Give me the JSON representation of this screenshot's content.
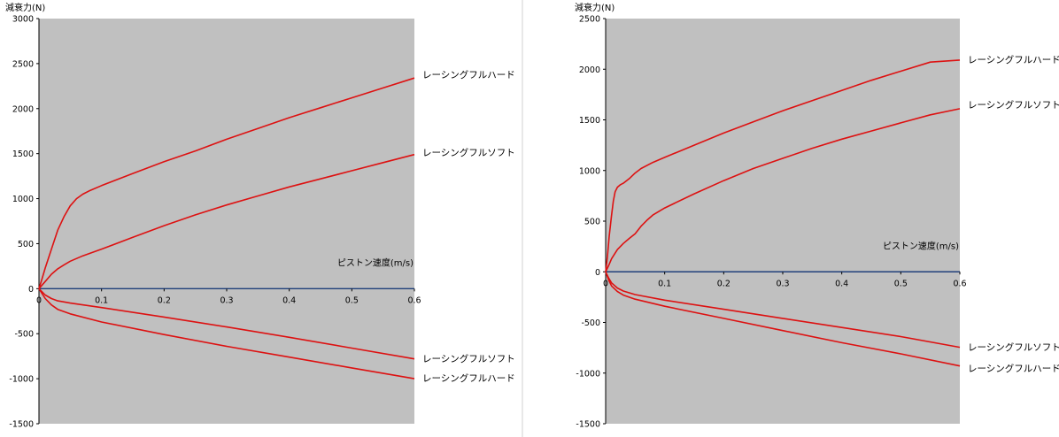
{
  "chart_data": [
    {
      "type": "line",
      "ylabel": "減衰力(N)",
      "xlabel": "ピストン速度(m/s)",
      "xlim": [
        0,
        0.6
      ],
      "ylim": [
        -1500,
        3000
      ],
      "yticks": [
        3000,
        2500,
        2000,
        1500,
        1000,
        500,
        0,
        -500,
        -1000,
        -1500
      ],
      "xticks": [
        "0",
        "0.1",
        "0.2",
        "0.3",
        "0.4",
        "0.5",
        "0.6"
      ],
      "grid": false,
      "series": [
        {
          "name": "レーシングフルハード",
          "points": [
            [
              0,
              0
            ],
            [
              0.005,
              110
            ],
            [
              0.01,
              230
            ],
            [
              0.02,
              440
            ],
            [
              0.03,
              650
            ],
            [
              0.04,
              800
            ],
            [
              0.05,
              920
            ],
            [
              0.06,
              1000
            ],
            [
              0.07,
              1050
            ],
            [
              0.08,
              1085
            ],
            [
              0.1,
              1145
            ],
            [
              0.15,
              1280
            ],
            [
              0.2,
              1410
            ],
            [
              0.25,
              1530
            ],
            [
              0.3,
              1660
            ],
            [
              0.35,
              1780
            ],
            [
              0.4,
              1900
            ],
            [
              0.45,
              2010
            ],
            [
              0.5,
              2120
            ],
            [
              0.55,
              2230
            ],
            [
              0.6,
              2340
            ]
          ]
        },
        {
          "name": "レーシングフルソフト",
          "points": [
            [
              0,
              0
            ],
            [
              0.01,
              80
            ],
            [
              0.02,
              160
            ],
            [
              0.03,
              220
            ],
            [
              0.04,
              265
            ],
            [
              0.05,
              305
            ],
            [
              0.07,
              365
            ],
            [
              0.1,
              440
            ],
            [
              0.15,
              570
            ],
            [
              0.2,
              700
            ],
            [
              0.25,
              820
            ],
            [
              0.3,
              930
            ],
            [
              0.35,
              1030
            ],
            [
              0.4,
              1130
            ],
            [
              0.45,
              1220
            ],
            [
              0.5,
              1310
            ],
            [
              0.55,
              1400
            ],
            [
              0.6,
              1490
            ]
          ]
        },
        {
          "name": "レーシングフルソフト",
          "points": [
            [
              0,
              0
            ],
            [
              0.01,
              -70
            ],
            [
              0.02,
              -110
            ],
            [
              0.03,
              -135
            ],
            [
              0.05,
              -160
            ],
            [
              0.1,
              -210
            ],
            [
              0.2,
              -315
            ],
            [
              0.3,
              -425
            ],
            [
              0.4,
              -540
            ],
            [
              0.5,
              -660
            ],
            [
              0.6,
              -780
            ]
          ]
        },
        {
          "name": "レーシングフルハード",
          "points": [
            [
              0,
              0
            ],
            [
              0.01,
              -110
            ],
            [
              0.02,
              -180
            ],
            [
              0.03,
              -230
            ],
            [
              0.05,
              -280
            ],
            [
              0.1,
              -370
            ],
            [
              0.2,
              -510
            ],
            [
              0.3,
              -640
            ],
            [
              0.4,
              -760
            ],
            [
              0.5,
              -880
            ],
            [
              0.6,
              -1000
            ]
          ]
        }
      ]
    },
    {
      "type": "line",
      "ylabel": "減衰力(N)",
      "xlabel": "ピストン速度(m/s)",
      "xlim": [
        0,
        0.6
      ],
      "ylim": [
        -1500,
        2500
      ],
      "yticks": [
        2500,
        2000,
        1500,
        1000,
        500,
        0,
        -500,
        -1000,
        -1500
      ],
      "xticks": [
        "0",
        "0.1",
        "0.2",
        "0.3",
        "0.4",
        "0.5",
        "0.6"
      ],
      "grid": false,
      "series": [
        {
          "name": "レーシングフルハード",
          "points": [
            [
              0,
              0
            ],
            [
              0.003,
              150
            ],
            [
              0.006,
              350
            ],
            [
              0.01,
              560
            ],
            [
              0.013,
              700
            ],
            [
              0.016,
              790
            ],
            [
              0.02,
              835
            ],
            [
              0.025,
              860
            ],
            [
              0.03,
              875
            ],
            [
              0.04,
              920
            ],
            [
              0.05,
              975
            ],
            [
              0.06,
              1020
            ],
            [
              0.08,
              1080
            ],
            [
              0.1,
              1130
            ],
            [
              0.15,
              1250
            ],
            [
              0.2,
              1370
            ],
            [
              0.25,
              1480
            ],
            [
              0.3,
              1590
            ],
            [
              0.35,
              1690
            ],
            [
              0.4,
              1790
            ],
            [
              0.45,
              1890
            ],
            [
              0.5,
              1980
            ],
            [
              0.55,
              2070
            ],
            [
              0.6,
              2090
            ]
          ]
        },
        {
          "name": "レーシングフルソフト",
          "points": [
            [
              0,
              0
            ],
            [
              0.005,
              60
            ],
            [
              0.01,
              130
            ],
            [
              0.02,
              220
            ],
            [
              0.03,
              280
            ],
            [
              0.04,
              330
            ],
            [
              0.05,
              375
            ],
            [
              0.06,
              450
            ],
            [
              0.07,
              510
            ],
            [
              0.08,
              560
            ],
            [
              0.1,
              630
            ],
            [
              0.15,
              770
            ],
            [
              0.2,
              900
            ],
            [
              0.25,
              1020
            ],
            [
              0.3,
              1120
            ],
            [
              0.35,
              1220
            ],
            [
              0.4,
              1310
            ],
            [
              0.45,
              1390
            ],
            [
              0.5,
              1470
            ],
            [
              0.55,
              1550
            ],
            [
              0.6,
              1610
            ]
          ]
        },
        {
          "name": "レーシングフルソフト",
          "points": [
            [
              0,
              0
            ],
            [
              0.005,
              -60
            ],
            [
              0.01,
              -110
            ],
            [
              0.02,
              -160
            ],
            [
              0.03,
              -190
            ],
            [
              0.05,
              -225
            ],
            [
              0.1,
              -280
            ],
            [
              0.2,
              -370
            ],
            [
              0.3,
              -460
            ],
            [
              0.4,
              -550
            ],
            [
              0.5,
              -640
            ],
            [
              0.6,
              -745
            ]
          ]
        },
        {
          "name": "レーシングフルハード",
          "points": [
            [
              0,
              0
            ],
            [
              0.005,
              -80
            ],
            [
              0.01,
              -140
            ],
            [
              0.02,
              -195
            ],
            [
              0.03,
              -230
            ],
            [
              0.05,
              -270
            ],
            [
              0.1,
              -340
            ],
            [
              0.2,
              -460
            ],
            [
              0.3,
              -580
            ],
            [
              0.4,
              -700
            ],
            [
              0.5,
              -810
            ],
            [
              0.6,
              -930
            ]
          ]
        }
      ]
    }
  ],
  "colors": {
    "plot_bg": "#c0c0c0",
    "curve": "#dd1111",
    "zero_axis": "#1f3f7a"
  }
}
